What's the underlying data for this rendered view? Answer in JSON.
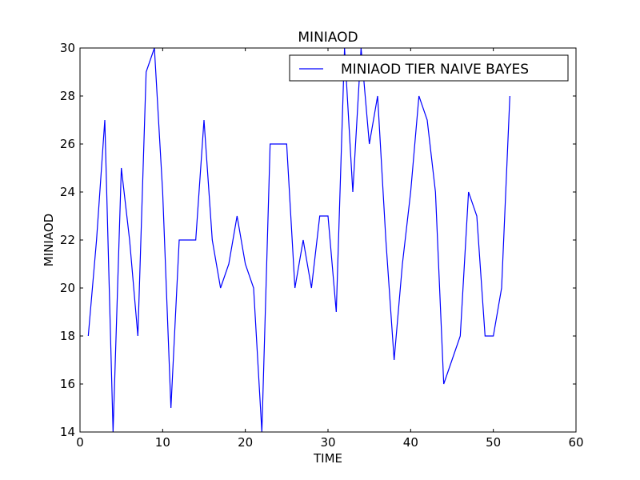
{
  "chart_data": {
    "type": "line",
    "title": "MINIAOD",
    "xlabel": "TIME",
    "ylabel": "MINIAOD",
    "xlim": [
      0,
      60
    ],
    "ylim": [
      14,
      30
    ],
    "xticks": [
      "0",
      "10",
      "20",
      "30",
      "40",
      "50",
      "60"
    ],
    "yticks": [
      "14",
      "16",
      "18",
      "20",
      "22",
      "24",
      "26",
      "28",
      "30"
    ],
    "grid": false,
    "legend_position": "top-right",
    "series": [
      {
        "name": "MINIAOD TIER NAIVE BAYES",
        "color": "#0000ff",
        "x": [
          1,
          2,
          3,
          4,
          5,
          6,
          7,
          8,
          9,
          10,
          11,
          12,
          13,
          14,
          15,
          16,
          17,
          18,
          19,
          20,
          21,
          22,
          23,
          24,
          25,
          26,
          27,
          28,
          29,
          30,
          31,
          32,
          33,
          34,
          35,
          36,
          37,
          38,
          39,
          40,
          41,
          42,
          43,
          44,
          45,
          46,
          47,
          48,
          49,
          50,
          51,
          52
        ],
        "y": [
          18,
          22,
          27,
          14,
          25,
          22,
          18,
          29,
          30,
          24,
          15,
          22,
          22,
          22,
          27,
          22,
          20,
          21,
          23,
          21,
          20,
          14,
          26,
          26,
          26,
          20,
          22,
          20,
          23,
          23,
          19,
          30,
          24,
          30,
          26,
          28,
          22,
          17,
          21,
          24,
          28,
          27,
          24,
          16,
          17,
          18,
          24,
          23,
          18,
          18,
          20,
          28
        ]
      }
    ]
  }
}
